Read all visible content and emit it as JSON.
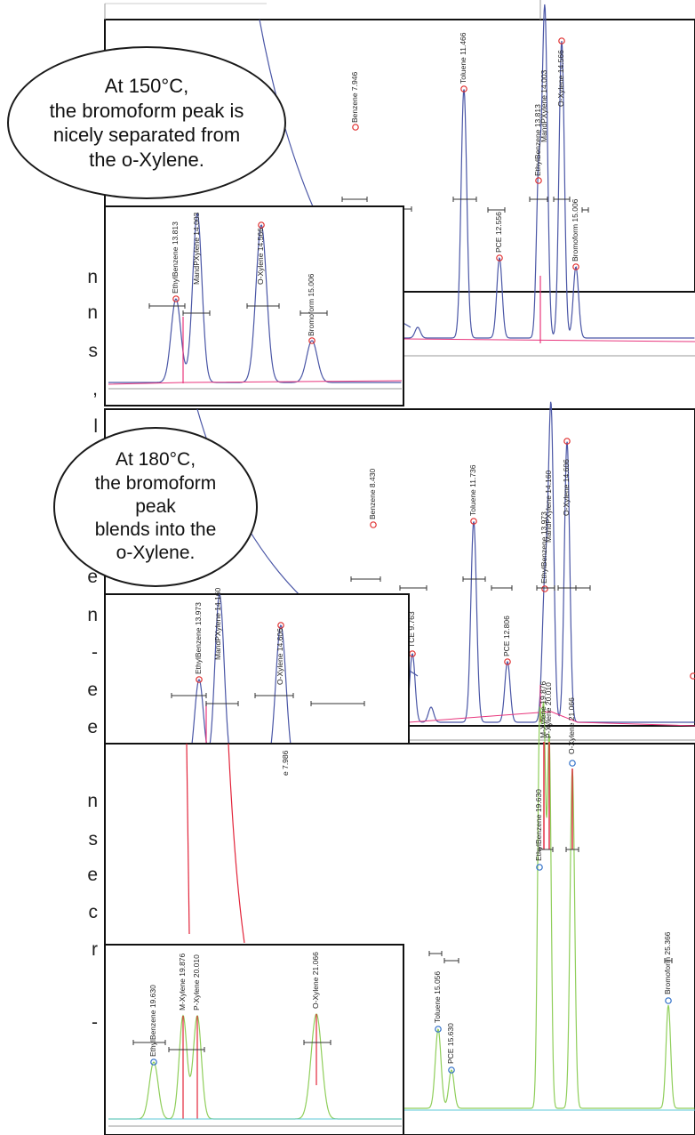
{
  "annotations": {
    "bubble_150": "At 150°C, the bromoform peak is nicely separated from the o-Xylene.",
    "bubble_180": "At 180°C, the bromoform peak blends into the o-Xylene."
  },
  "left_edge_letters": [
    "n",
    "n",
    "s",
    ",",
    "l",
    "-",
    "l",
    "e",
    "e",
    "n",
    "-",
    "e",
    "e",
    "n",
    "s",
    "e",
    "c",
    "r",
    "-"
  ],
  "colors": {
    "trace_blue": "#4a56a6",
    "trace_green": "#8fce5a",
    "overlay_red": "#e2243a",
    "baseline_pink": "#e8357c",
    "baseline_cyan": "#5ec8d8",
    "axis_gray": "#9a9a9a",
    "marker_red": "#e03030",
    "marker_blue": "#2f6fc8",
    "frame_black": "#111111"
  },
  "chart_data": [
    {
      "type": "line",
      "name_label": "",
      "panel": "top",
      "peaks": [
        {
          "label": "Benzene 7.946",
          "value": 7.946
        },
        {
          "label": "Toluene 11.466",
          "value": 11.466
        },
        {
          "label": "PCE 12.556",
          "value": 12.556
        },
        {
          "label": "EthylBenzene 13.813",
          "value": 13.813
        },
        {
          "label": "MandPXylene 14.003",
          "value": 14.003
        },
        {
          "label": "O-Xylene 14.566",
          "value": 14.566
        },
        {
          "label": "Bromoform 15.006",
          "value": 15.006
        }
      ],
      "x_range": [
        5.5,
        16.6
      ]
    },
    {
      "type": "line",
      "panel": "top-inset",
      "peaks": [
        {
          "label": "EthylBenzene 13.813",
          "value": 13.813
        },
        {
          "label": "MandPXylene 14.003",
          "value": 14.003
        },
        {
          "label": "O-Xylene 14.566",
          "value": 14.566
        },
        {
          "label": "Bromoform 15.006",
          "value": 15.006
        }
      ],
      "x_range": [
        13.4,
        15.5
      ]
    },
    {
      "type": "line",
      "panel": "middle",
      "peaks": [
        {
          "label": "Benzene 8.430",
          "value": 8.43
        },
        {
          "label": "TCE 9.763",
          "value": 9.763
        },
        {
          "label": "Toluene 11.736",
          "value": 11.736
        },
        {
          "label": "PCE 12.806",
          "value": 12.806
        },
        {
          "label": "EthylBenzene 13.973",
          "value": 13.973
        },
        {
          "label": "MandPXylene 14.160",
          "value": 14.16
        },
        {
          "label": "O-Xylene 14.606",
          "value": 14.606
        }
      ],
      "x_range": [
        6.0,
        16.6
      ]
    },
    {
      "type": "line",
      "panel": "middle-inset",
      "peaks": [
        {
          "label": "EthylBenzene 13.973",
          "value": 13.973
        },
        {
          "label": "MandPXylene 14.160",
          "value": 14.16
        },
        {
          "label": "O-Xylene 14.606",
          "value": 14.606
        }
      ],
      "x_range": [
        13.4,
        15.5
      ]
    },
    {
      "type": "line",
      "panel": "bottom",
      "peaks": [
        {
          "label": "e 7.986",
          "value": 7.986
        },
        {
          "label": "Toluene 15.056",
          "value": 15.056
        },
        {
          "label": "PCE 15.630",
          "value": 15.63
        },
        {
          "label": "EthylBenzene 19.630",
          "value": 19.63
        },
        {
          "label": "M-Xylene 19.876",
          "value": 19.876
        },
        {
          "label": "P-Xylene 20.010",
          "value": 20.01
        },
        {
          "label": "O-Xylene 21.066",
          "value": 21.066
        },
        {
          "label": "Bromoform 25.366",
          "value": 25.366
        }
      ],
      "x_range": [
        3.0,
        28.0
      ]
    },
    {
      "type": "line",
      "panel": "bottom-inset",
      "peaks": [
        {
          "label": "EthylBenzene 19.630",
          "value": 19.63
        },
        {
          "label": "M-Xylene 19.876",
          "value": 19.876
        },
        {
          "label": "P-Xylene 20.010",
          "value": 20.01
        },
        {
          "label": "O-Xylene 21.066",
          "value": 21.066
        }
      ],
      "x_range": [
        19.2,
        21.6
      ]
    }
  ]
}
